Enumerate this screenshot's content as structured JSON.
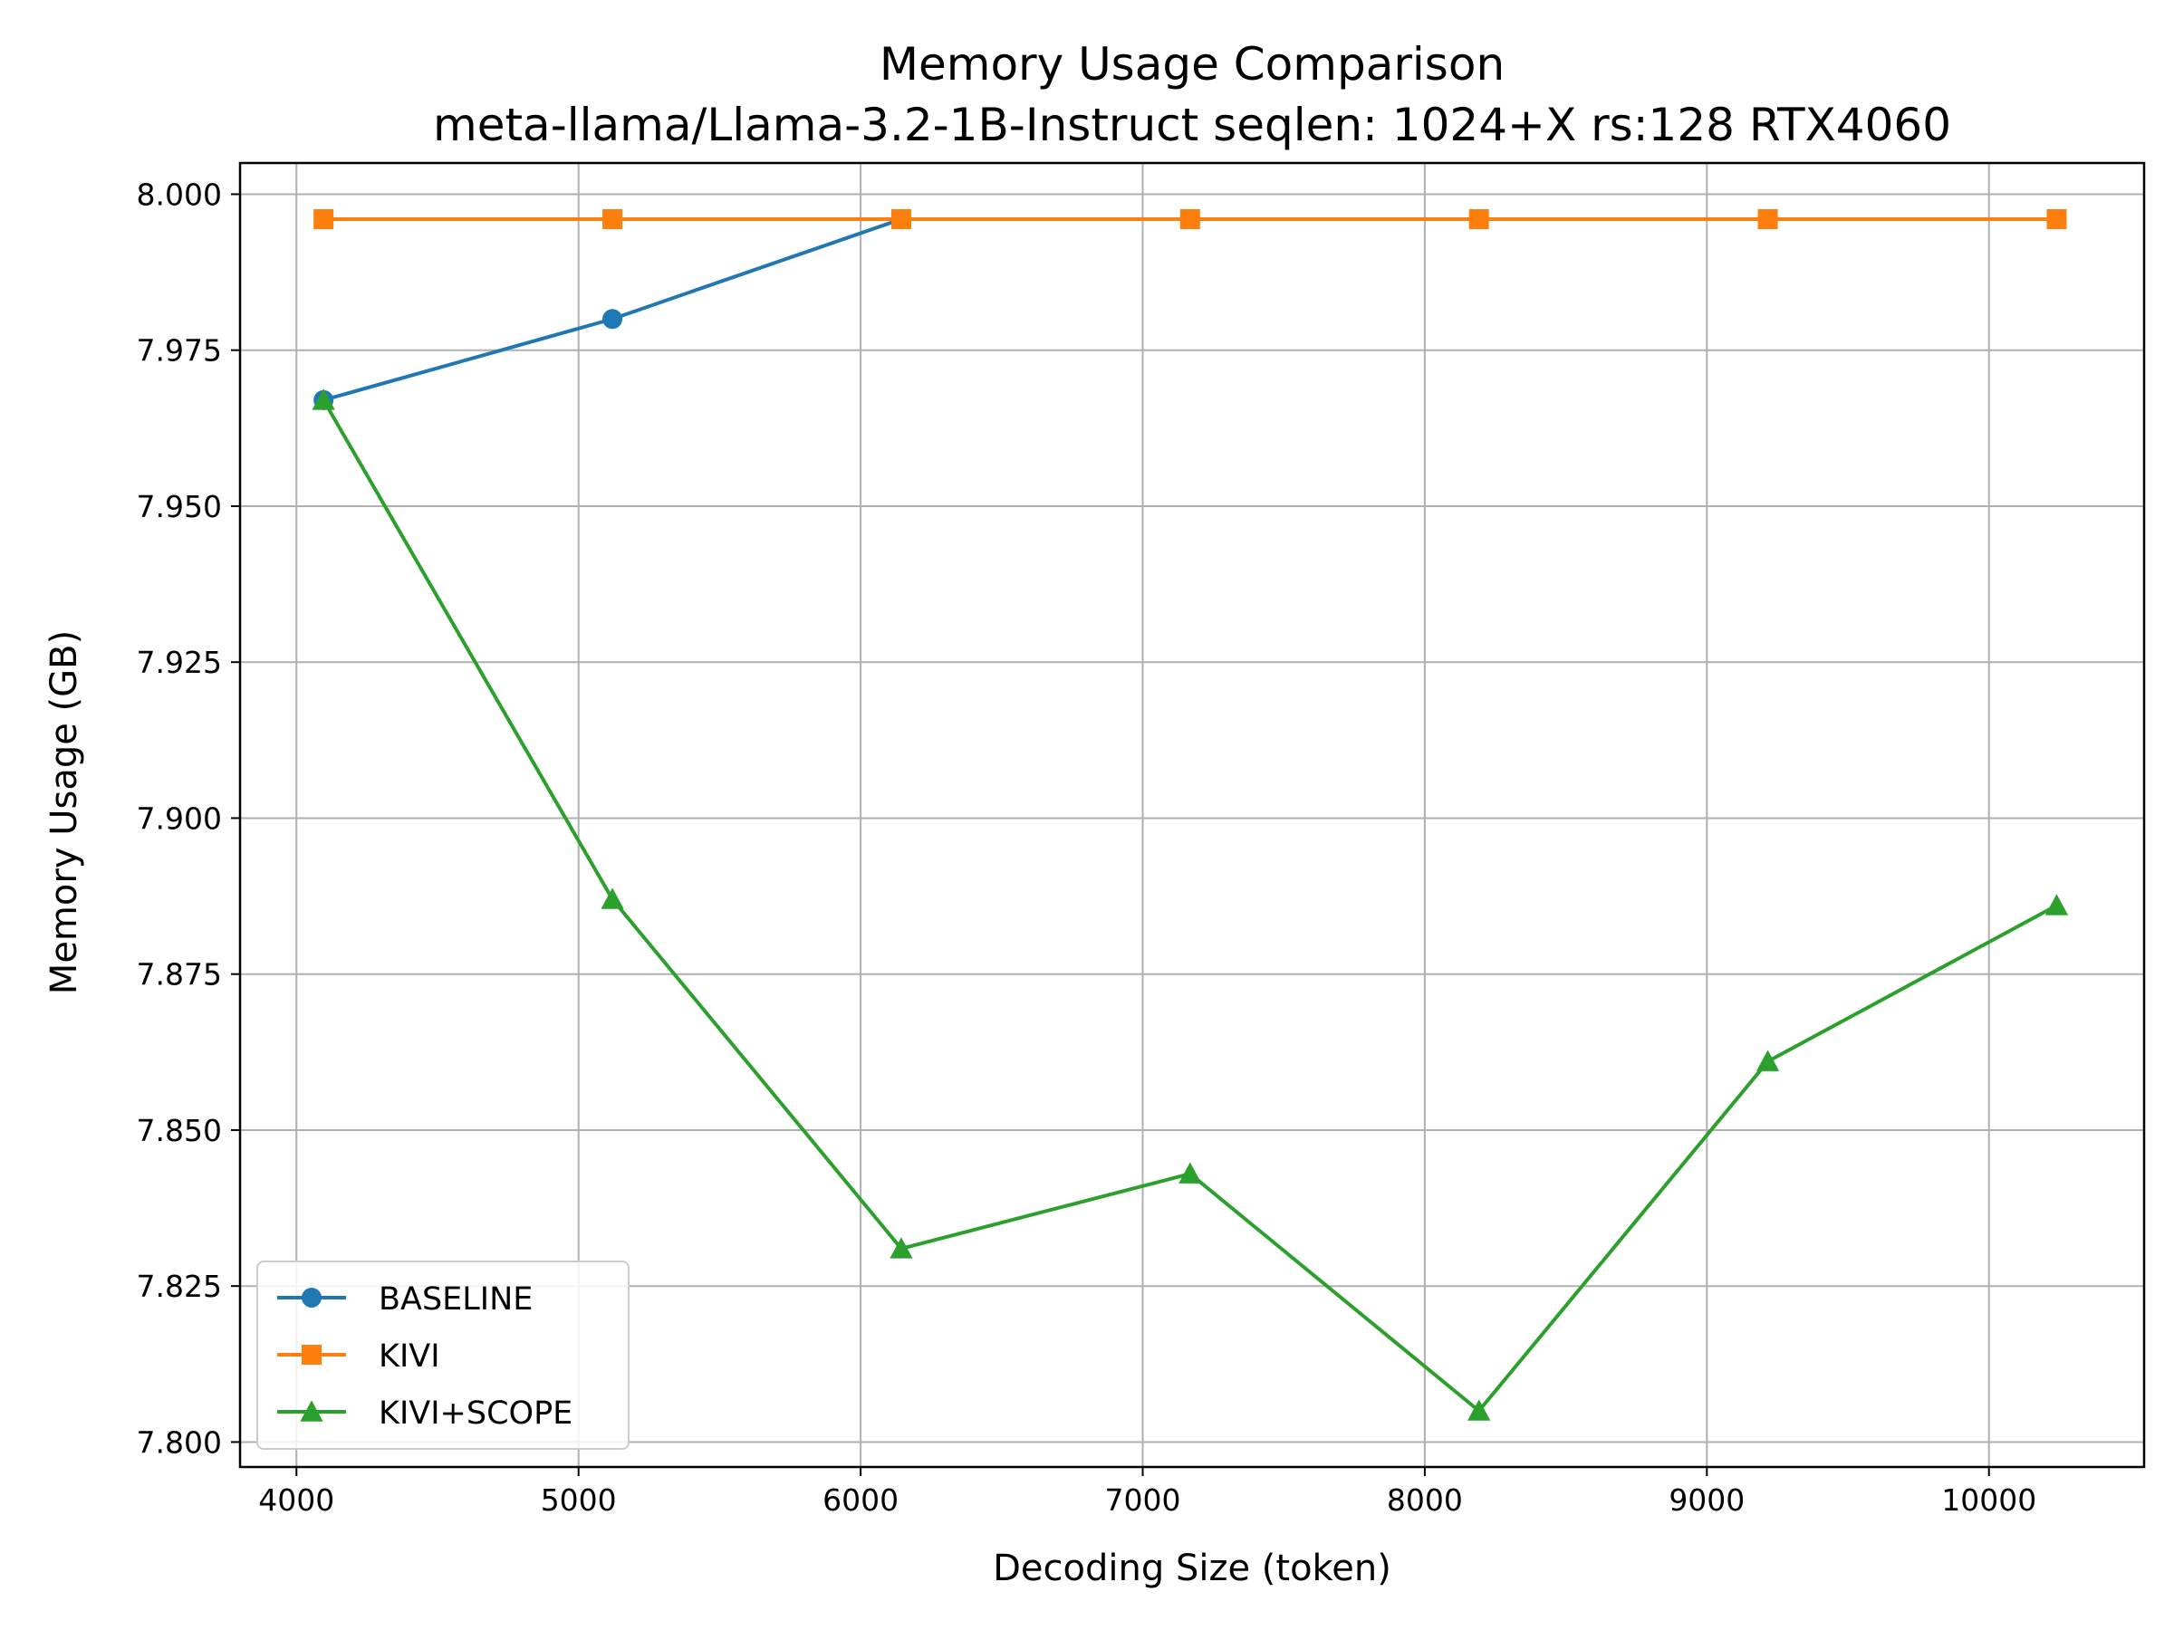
{
  "chart_data": {
    "type": "line",
    "title": "Memory Usage Comparison",
    "subtitle": "meta-llama/Llama-3.2-1B-Instruct seqlen: 1024+X rs:128 RTX4060",
    "xlabel": "Decoding Size (token)",
    "ylabel": "Memory Usage (GB)",
    "xlim": [
      3800,
      10550
    ],
    "ylim": [
      7.796,
      8.005
    ],
    "xticks": [
      4000,
      5000,
      6000,
      7000,
      8000,
      9000,
      10000
    ],
    "xtick_labels": [
      "4000",
      "5000",
      "6000",
      "7000",
      "8000",
      "9000",
      "10000"
    ],
    "yticks": [
      7.8,
      7.825,
      7.85,
      7.875,
      7.9,
      7.925,
      7.95,
      7.975,
      8.0
    ],
    "ytick_labels": [
      "7.800",
      "7.825",
      "7.850",
      "7.875",
      "7.900",
      "7.925",
      "7.950",
      "7.975",
      "8.000"
    ],
    "grid": true,
    "legend": {
      "position": "lower-left"
    },
    "series": [
      {
        "name": "BASELINE",
        "color": "#1f77b4",
        "marker": "circle",
        "x": [
          4096,
          5120,
          6144
        ],
        "y": [
          7.967,
          7.98,
          7.996
        ]
      },
      {
        "name": "KIVI",
        "color": "#ff7f0e",
        "marker": "square",
        "x": [
          4096,
          5120,
          6144,
          7168,
          8192,
          9216,
          10240
        ],
        "y": [
          7.996,
          7.996,
          7.996,
          7.996,
          7.996,
          7.996,
          7.996
        ]
      },
      {
        "name": "KIVI+SCOPE",
        "color": "#2ca02c",
        "marker": "triangle",
        "x": [
          4096,
          5120,
          6144,
          7168,
          8192,
          9216,
          10240
        ],
        "y": [
          7.967,
          7.887,
          7.831,
          7.843,
          7.805,
          7.861,
          7.886
        ]
      }
    ]
  }
}
